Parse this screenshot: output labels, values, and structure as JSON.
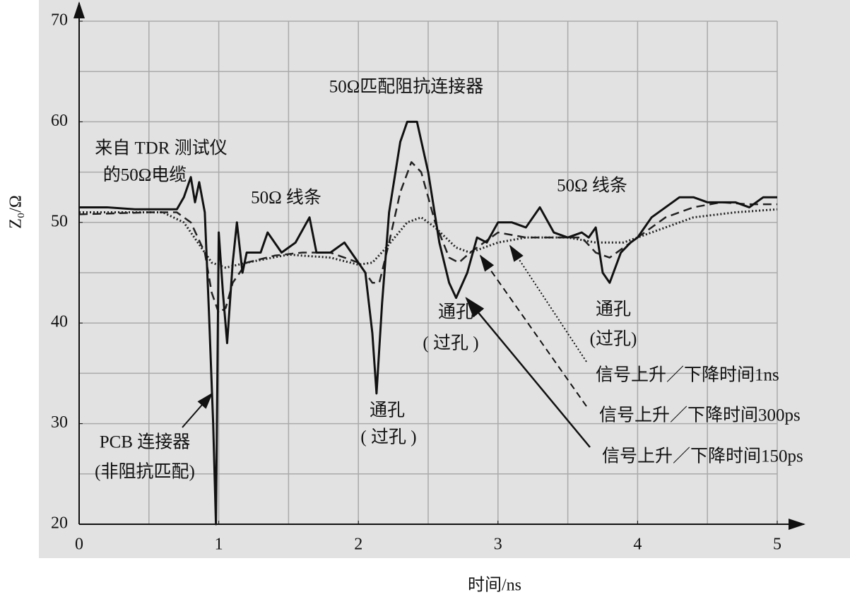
{
  "chart_data": {
    "type": "line",
    "x_label": "时间/ns",
    "y_label": "Z₀/Ω",
    "xlim": [
      0,
      5
    ],
    "ylim": [
      20,
      70
    ],
    "xticks": [
      0,
      1,
      2,
      3,
      4,
      5
    ],
    "yticks": [
      20,
      30,
      40,
      50,
      60,
      70
    ],
    "grid": true,
    "x_grid_step": 0.5,
    "y_grid_step": 5,
    "annotations": [
      "50Ω匹配阻抗连接器",
      "来自 TDR 测试仪",
      "的50Ω电缆",
      "50Ω 线条",
      "50Ω 线条",
      "通孔",
      "( 过孔 )",
      "通孔",
      "( 过孔 )",
      "通孔",
      "(过孔)",
      "PCB 连接器",
      "(非阻抗匹配)"
    ],
    "series": [
      {
        "name": "信号上升／下降时间1ns",
        "color": "#222",
        "style": "dotted",
        "x": [
          0,
          0.6,
          0.75,
          0.85,
          0.95,
          1.05,
          1.2,
          1.5,
          1.8,
          2.0,
          2.1,
          2.2,
          2.35,
          2.45,
          2.55,
          2.7,
          2.8,
          3.0,
          3.2,
          3.5,
          3.7,
          3.9,
          4.1,
          4.4,
          4.7,
          5.0
        ],
        "values": [
          51,
          51,
          50,
          48,
          46,
          45.5,
          46,
          46.8,
          46.5,
          45.8,
          46,
          47.5,
          50,
          50.5,
          49.5,
          47.5,
          47,
          48,
          48.5,
          48.5,
          48,
          48,
          49,
          50.5,
          51,
          51.3
        ]
      },
      {
        "name": "信号上升／下降时间300ps",
        "color": "#222",
        "style": "dashed",
        "x": [
          0,
          0.5,
          0.7,
          0.8,
          0.9,
          0.95,
          1.0,
          1.05,
          1.1,
          1.2,
          1.4,
          1.6,
          1.8,
          2.0,
          2.1,
          2.15,
          2.22,
          2.3,
          2.38,
          2.45,
          2.55,
          2.65,
          2.72,
          2.8,
          2.9,
          3.0,
          3.2,
          3.4,
          3.6,
          3.7,
          3.8,
          3.9,
          4.0,
          4.2,
          4.4,
          4.6,
          4.8,
          5.0
        ],
        "values": [
          50.8,
          51,
          51,
          50,
          47,
          43,
          41,
          41.5,
          44,
          46,
          46.7,
          47,
          47,
          46,
          44,
          44,
          48,
          53,
          56,
          55,
          50,
          46.5,
          46,
          47,
          48,
          49,
          48.5,
          48.5,
          48.5,
          47,
          46.5,
          47.5,
          48.5,
          50.5,
          51.5,
          52,
          51.8,
          51.8
        ]
      },
      {
        "name": "信号上升／下降时间150ps",
        "color": "#111",
        "style": "solid",
        "x": [
          0,
          0.2,
          0.4,
          0.6,
          0.7,
          0.75,
          0.8,
          0.83,
          0.86,
          0.9,
          0.93,
          0.96,
          0.98,
          1.0,
          1.03,
          1.06,
          1.1,
          1.13,
          1.17,
          1.2,
          1.3,
          1.35,
          1.45,
          1.55,
          1.65,
          1.7,
          1.8,
          1.9,
          2.0,
          2.05,
          2.1,
          2.13,
          2.17,
          2.22,
          2.3,
          2.35,
          2.42,
          2.5,
          2.58,
          2.65,
          2.7,
          2.78,
          2.85,
          2.92,
          3.0,
          3.1,
          3.2,
          3.3,
          3.4,
          3.5,
          3.6,
          3.65,
          3.7,
          3.75,
          3.8,
          3.88,
          3.95,
          4.0,
          4.1,
          4.2,
          4.3,
          4.4,
          4.5,
          4.6,
          4.7,
          4.8,
          4.9,
          5.0
        ],
        "values": [
          51.5,
          51.5,
          51.3,
          51.3,
          51.3,
          52.5,
          54.5,
          52,
          54,
          51,
          41,
          30,
          20,
          49,
          43,
          38,
          46,
          50,
          45,
          47,
          47,
          49,
          47,
          48,
          50.5,
          47,
          47,
          48,
          46,
          45,
          39,
          33,
          42,
          51,
          58,
          60,
          60,
          55,
          48,
          44,
          42.5,
          45,
          48.5,
          48,
          50,
          50,
          49.5,
          51.5,
          49,
          48.5,
          49,
          48.5,
          49.5,
          45,
          44,
          47,
          48,
          48.5,
          50.5,
          51.5,
          52.5,
          52.5,
          52,
          52,
          52,
          51.5,
          52.5,
          52.5
        ]
      }
    ]
  }
}
